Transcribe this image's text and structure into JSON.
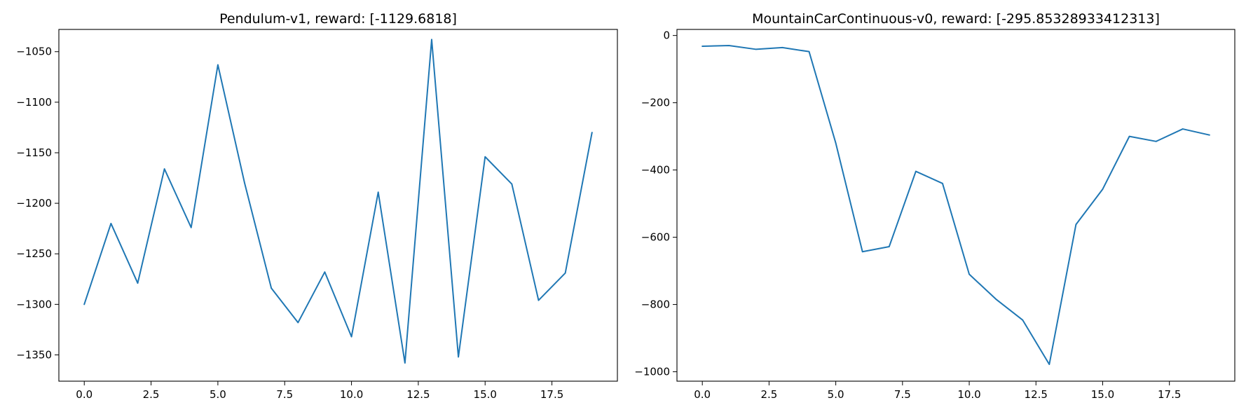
{
  "chart_data": [
    {
      "type": "line",
      "title": "Pendulum-v1, reward: [-1129.6818]",
      "xlabel": "",
      "ylabel": "",
      "xlim": [
        -0.95,
        19.95
      ],
      "ylim": [
        -1376,
        -1028
      ],
      "xticks": [
        0,
        2.5,
        5,
        7.5,
        10,
        12.5,
        15,
        17.5
      ],
      "xtick_labels": [
        "0.0",
        "2.5",
        "5.0",
        "7.5",
        "10.0",
        "12.5",
        "15.0",
        "17.5"
      ],
      "yticks": [
        -1350,
        -1300,
        -1250,
        -1200,
        -1150,
        -1100,
        -1050
      ],
      "ytick_labels": [
        "−1350",
        "−1300",
        "−1250",
        "−1200",
        "−1150",
        "−1100",
        "−1050"
      ],
      "grid": false,
      "color": "#1f77b4",
      "series": [
        {
          "x": [
            0,
            1,
            2,
            3,
            4,
            5,
            6,
            7,
            8,
            9,
            10,
            11,
            12,
            13,
            14,
            15,
            16,
            17,
            18,
            19
          ],
          "values": [
            -1300,
            -1220,
            -1279,
            -1166,
            -1224,
            -1063,
            -1180,
            -1284,
            -1318,
            -1268,
            -1332,
            -1189,
            -1358,
            -1038,
            -1352,
            -1154,
            -1181,
            -1296,
            -1269,
            -1130
          ]
        }
      ]
    },
    {
      "type": "line",
      "title": "MountainCarContinuous-v0, reward: [-295.85328933412313]",
      "xlabel": "",
      "ylabel": "",
      "xlim": [
        -0.95,
        19.95
      ],
      "ylim": [
        -1028,
        18
      ],
      "xticks": [
        0,
        2.5,
        5,
        7.5,
        10,
        12.5,
        15,
        17.5
      ],
      "xtick_labels": [
        "0.0",
        "2.5",
        "5.0",
        "7.5",
        "10.0",
        "12.5",
        "15.0",
        "17.5"
      ],
      "yticks": [
        -1000,
        -800,
        -600,
        -400,
        -200,
        0
      ],
      "ytick_labels": [
        "−1000",
        "−800",
        "−600",
        "−400",
        "−200",
        "0"
      ],
      "grid": false,
      "color": "#1f77b4",
      "series": [
        {
          "x": [
            0,
            1,
            2,
            3,
            4,
            5,
            6,
            7,
            8,
            9,
            10,
            11,
            12,
            13,
            14,
            15,
            16,
            17,
            18,
            19
          ],
          "values": [
            -32,
            -30,
            -41,
            -36,
            -48,
            -320,
            -643,
            -628,
            -404,
            -440,
            -710,
            -784,
            -846,
            -978,
            -562,
            -457,
            -300,
            -315,
            -278,
            -296
          ]
        }
      ]
    }
  ]
}
